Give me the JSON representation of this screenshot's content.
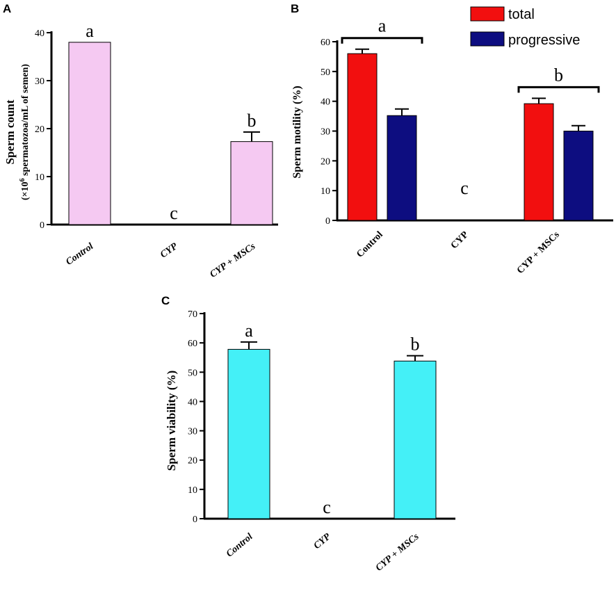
{
  "colors": {
    "panel_a_bar": "#f5c9f2",
    "panel_b_total": "#f20f0f",
    "panel_b_progressive": "#0d0d80",
    "panel_c_bar": "#44f0f7",
    "axis": "#000000"
  },
  "chart_data": [
    {
      "panel": "A",
      "type": "bar",
      "ylabel_line1": "Sperm count",
      "ylabel_line2_pre": "(×10",
      "ylabel_line2_sup": "6",
      "ylabel_line2_post": " spermatozoa/mL of semen)",
      "categories": [
        "Control",
        "CYP",
        "CYP + MSCs"
      ],
      "values": [
        38,
        0,
        17.3
      ],
      "errors": [
        0,
        0,
        2
      ],
      "significance": [
        "a",
        "c",
        "b"
      ],
      "ylim": [
        0,
        40
      ],
      "yticks": [
        0,
        10,
        20,
        30,
        40
      ]
    },
    {
      "panel": "B",
      "type": "bar",
      "ylabel": "Sperm motility (%)",
      "categories": [
        "Control",
        "CYP",
        "CYP + MSCs"
      ],
      "series": [
        {
          "name": "total",
          "values": [
            56,
            0,
            39.2
          ],
          "errors": [
            1.5,
            0,
            1.8
          ]
        },
        {
          "name": "progressive",
          "values": [
            35.2,
            0,
            30
          ],
          "errors": [
            2.2,
            0,
            1.8
          ]
        }
      ],
      "significance": [
        "a",
        "c",
        "b"
      ],
      "ylim": [
        0,
        60
      ],
      "yticks": [
        0,
        10,
        20,
        30,
        40,
        50,
        60
      ]
    },
    {
      "panel": "C",
      "type": "bar",
      "ylabel": "Sperm viability (%)",
      "categories": [
        "Control",
        "CYP",
        "CYP + MSCs"
      ],
      "values": [
        57.8,
        0,
        53.8
      ],
      "errors": [
        2.5,
        0,
        1.8
      ],
      "significance": [
        "a",
        "c",
        "b"
      ],
      "ylim": [
        0,
        70
      ],
      "yticks": [
        0,
        10,
        20,
        30,
        40,
        50,
        60,
        70
      ]
    }
  ]
}
